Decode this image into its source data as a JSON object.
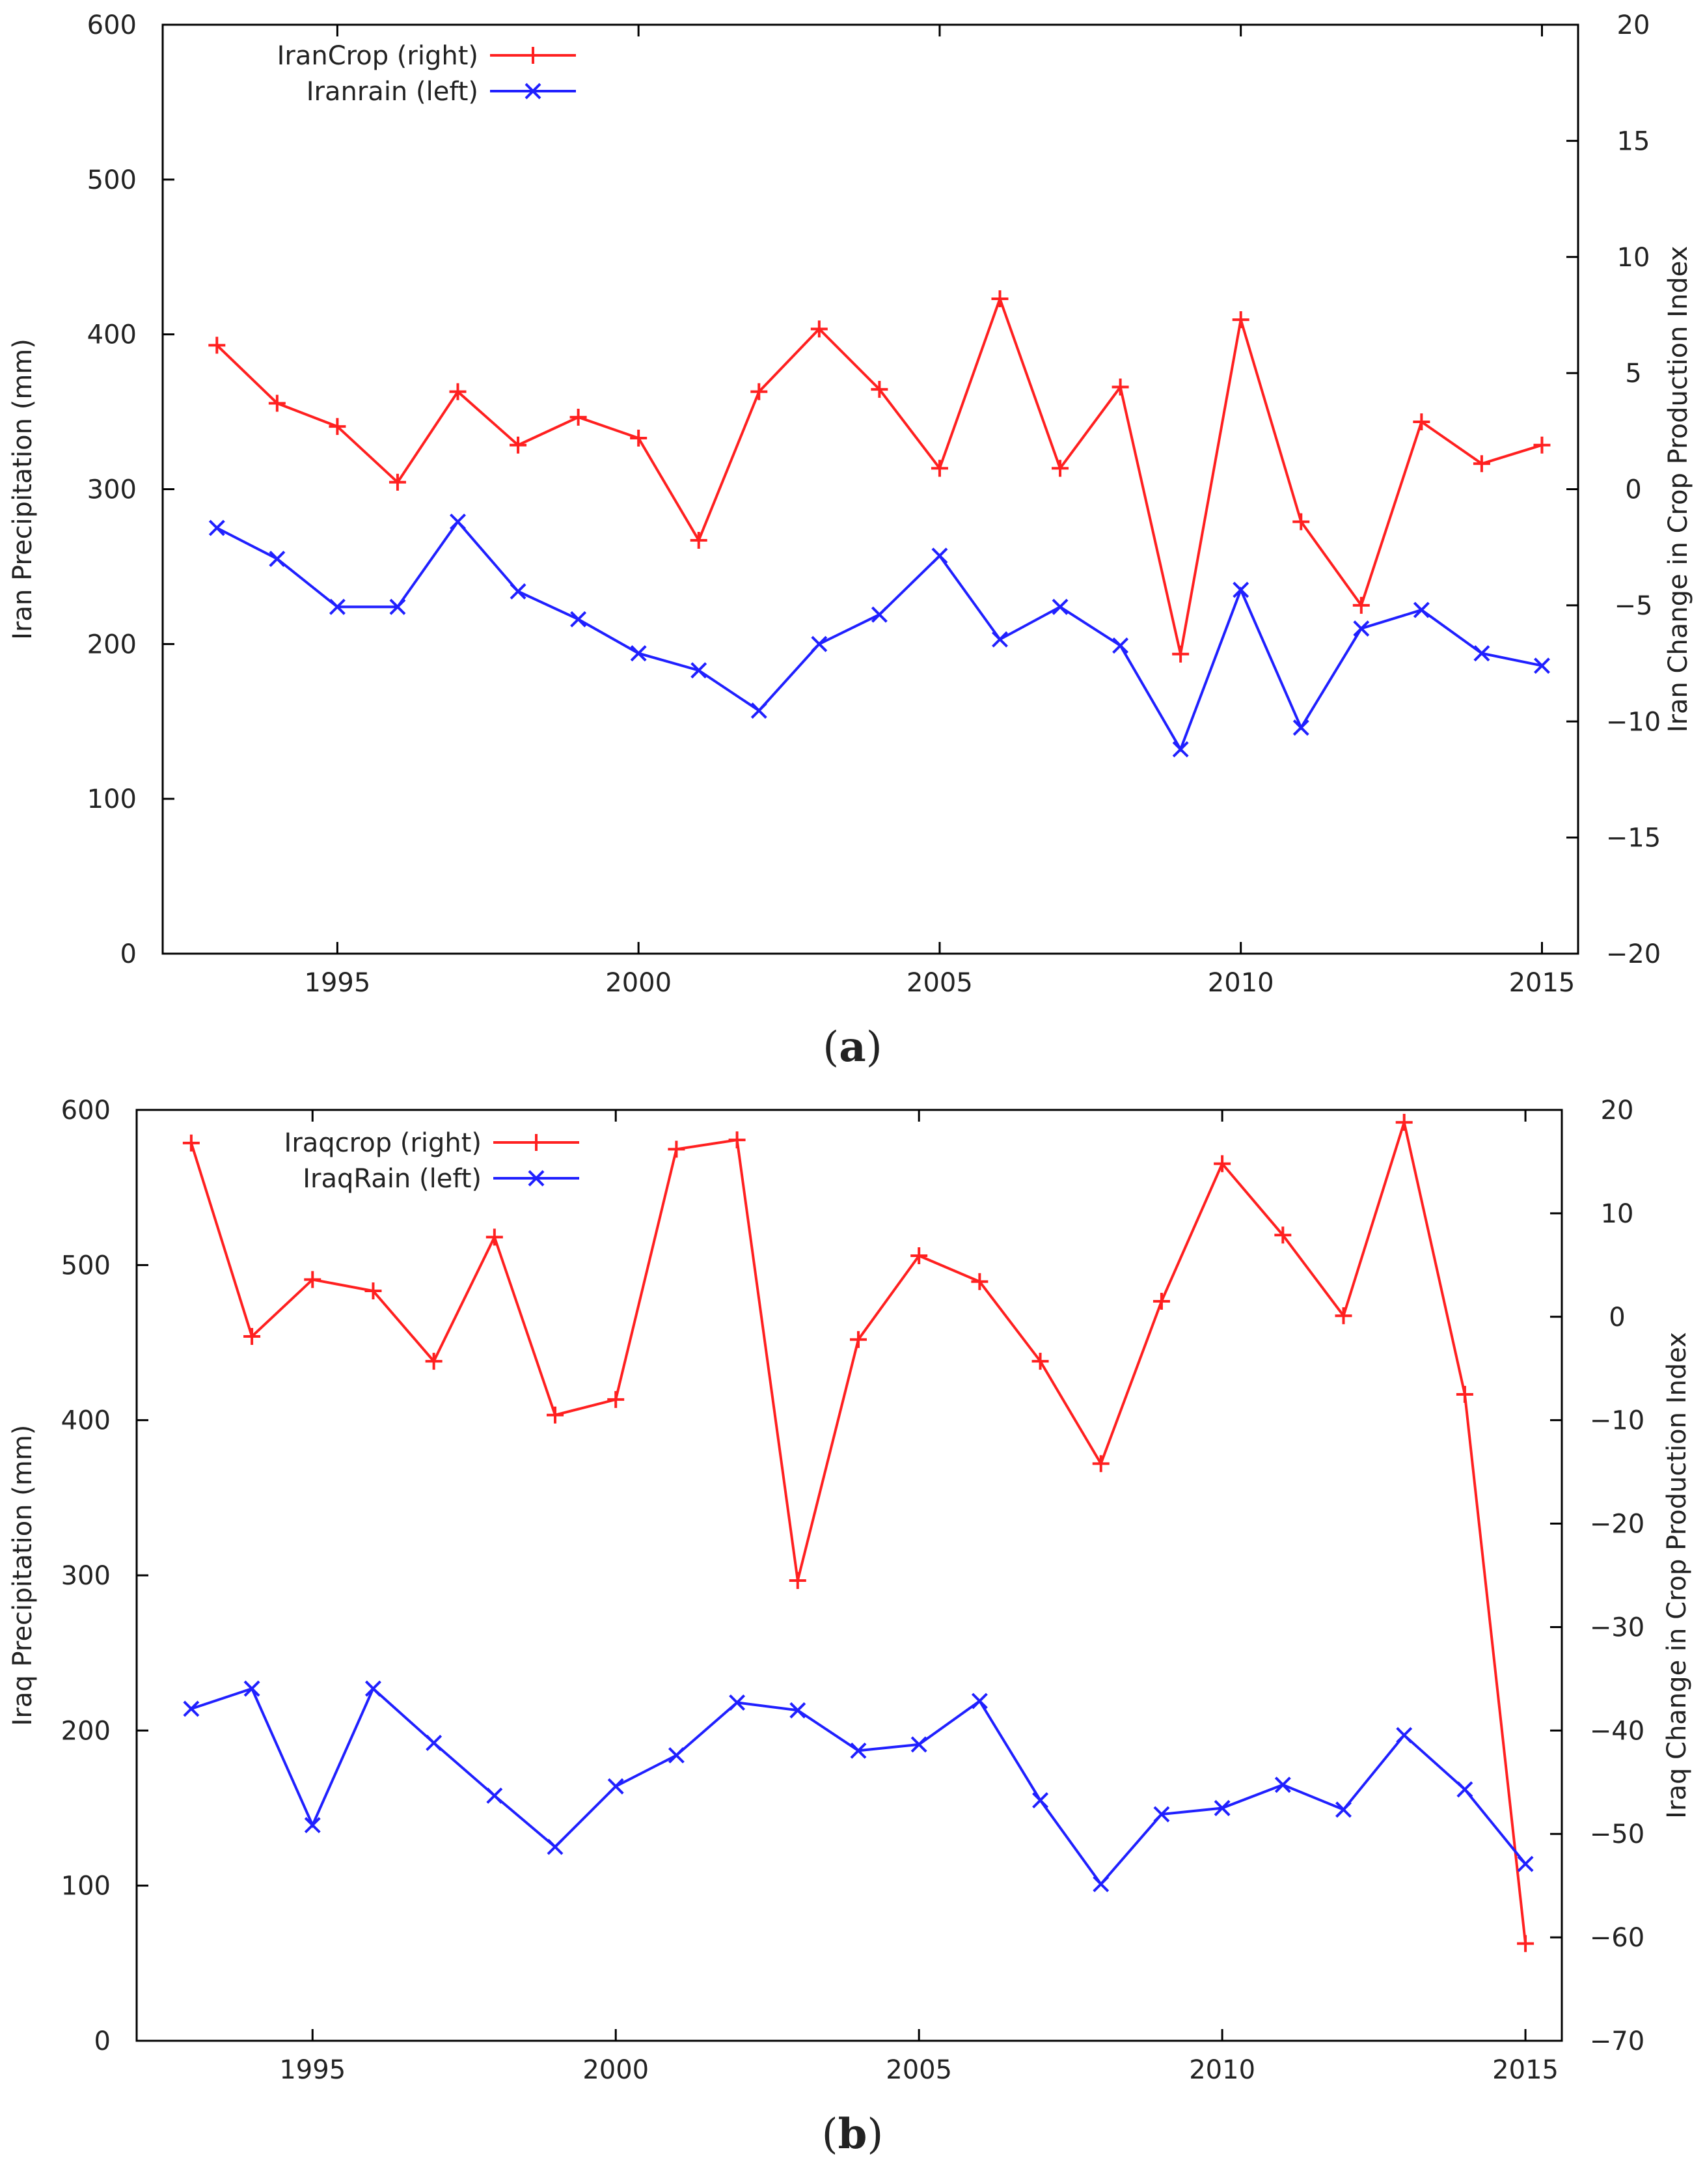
{
  "chart_data": [
    {
      "type": "line",
      "panel": "a",
      "panel_label_open": "(",
      "panel_label_letter": "a",
      "panel_label_close": ")",
      "x": [
        1993,
        1994,
        1995,
        1996,
        1997,
        1998,
        1999,
        2000,
        2001,
        2002,
        2003,
        2004,
        2005,
        2006,
        2007,
        2008,
        2009,
        2010,
        2011,
        2012,
        2013,
        2014,
        2015
      ],
      "xlim": [
        1992.1,
        2015.6
      ],
      "xticks": [
        1995,
        2000,
        2005,
        2010,
        2015
      ],
      "xtick_labels": [
        "1995",
        "2000",
        "2005",
        "2010",
        "2015"
      ],
      "ylim_left": [
        0,
        600
      ],
      "yticks_left": [
        0,
        100,
        200,
        300,
        400,
        500,
        600
      ],
      "ytick_labels_left": [
        "0",
        "100",
        "200",
        "300",
        "400",
        "500",
        "600"
      ],
      "ylim_right": [
        -20,
        20
      ],
      "yticks_right": [
        -20,
        -15,
        -10,
        -5,
        0,
        5,
        10,
        15,
        20
      ],
      "ytick_labels_right": [
        "−20",
        "−15",
        "−10",
        "−5",
        "0",
        "5",
        "10",
        "15",
        "20"
      ],
      "ylabel_left": "Iran Precipitation (mm)",
      "ylabel_right": "Iran Change in Crop Production Index",
      "legend_position": "top-left",
      "series": [
        {
          "name": "IranCrop  (right)",
          "axis": "right",
          "color": "#ff2020",
          "marker": "plus",
          "values": [
            6.2,
            3.7,
            2.7,
            0.3,
            4.2,
            1.9,
            3.1,
            2.2,
            -2.2,
            4.2,
            6.9,
            4.3,
            0.9,
            8.2,
            0.9,
            4.4,
            -7.1,
            7.3,
            -1.4,
            -5.0,
            2.9,
            1.1,
            1.9
          ]
        },
        {
          "name": "Iranrain  (left)",
          "axis": "left",
          "color": "#2020ff",
          "marker": "cross",
          "values": [
            275,
            255,
            224,
            224,
            279,
            234,
            216,
            194,
            183,
            157,
            200,
            219,
            257,
            203,
            224,
            199,
            132,
            235,
            146,
            210,
            222,
            194,
            186
          ]
        }
      ]
    },
    {
      "type": "line",
      "panel": "b",
      "panel_label_open": "(",
      "panel_label_letter": "b",
      "panel_label_close": ")",
      "x": [
        1993,
        1994,
        1995,
        1996,
        1997,
        1998,
        1999,
        2000,
        2001,
        2002,
        2003,
        2004,
        2005,
        2006,
        2007,
        2008,
        2009,
        2010,
        2011,
        2012,
        2013,
        2014,
        2015
      ],
      "xlim": [
        1992.1,
        2015.6
      ],
      "xticks": [
        1995,
        2000,
        2005,
        2010,
        2015
      ],
      "xtick_labels": [
        "1995",
        "2000",
        "2005",
        "2010",
        "2015"
      ],
      "ylim_left": [
        0,
        600
      ],
      "yticks_left": [
        0,
        100,
        200,
        300,
        400,
        500,
        600
      ],
      "ytick_labels_left": [
        "0",
        "100",
        "200",
        "300",
        "400",
        "500",
        "600"
      ],
      "ylim_right": [
        -70,
        20
      ],
      "yticks_right": [
        -70,
        -60,
        -50,
        -40,
        -30,
        -20,
        -10,
        0,
        10,
        20
      ],
      "ytick_labels_right": [
        "−70",
        "−60",
        "−50",
        "−40",
        "−30",
        "−20",
        "−10",
        "0",
        "10",
        "20"
      ],
      "ylabel_left": "Iraq Precipitation (mm)",
      "ylabel_right": "Iraq Change in Crop Production Index",
      "legend_position": "top-left",
      "series": [
        {
          "name": "Iraqcrop  (right)",
          "axis": "right",
          "color": "#ff2020",
          "marker": "plus",
          "values": [
            16.8,
            -1.9,
            3.6,
            2.5,
            -4.3,
            7.7,
            -9.5,
            -8.0,
            16.2,
            17.1,
            -25.5,
            -2.2,
            5.9,
            3.4,
            -4.3,
            -14.2,
            1.5,
            14.8,
            7.9,
            0.1,
            18.8,
            -7.5,
            -60.6
          ]
        },
        {
          "name": "IraqRain  (left)",
          "axis": "left",
          "color": "#2020ff",
          "marker": "cross",
          "values": [
            214,
            227,
            139,
            227,
            192,
            158,
            125,
            164,
            184,
            218,
            213,
            187,
            191,
            219,
            155,
            101,
            146,
            150,
            165,
            149,
            197,
            162,
            114
          ]
        }
      ]
    }
  ]
}
